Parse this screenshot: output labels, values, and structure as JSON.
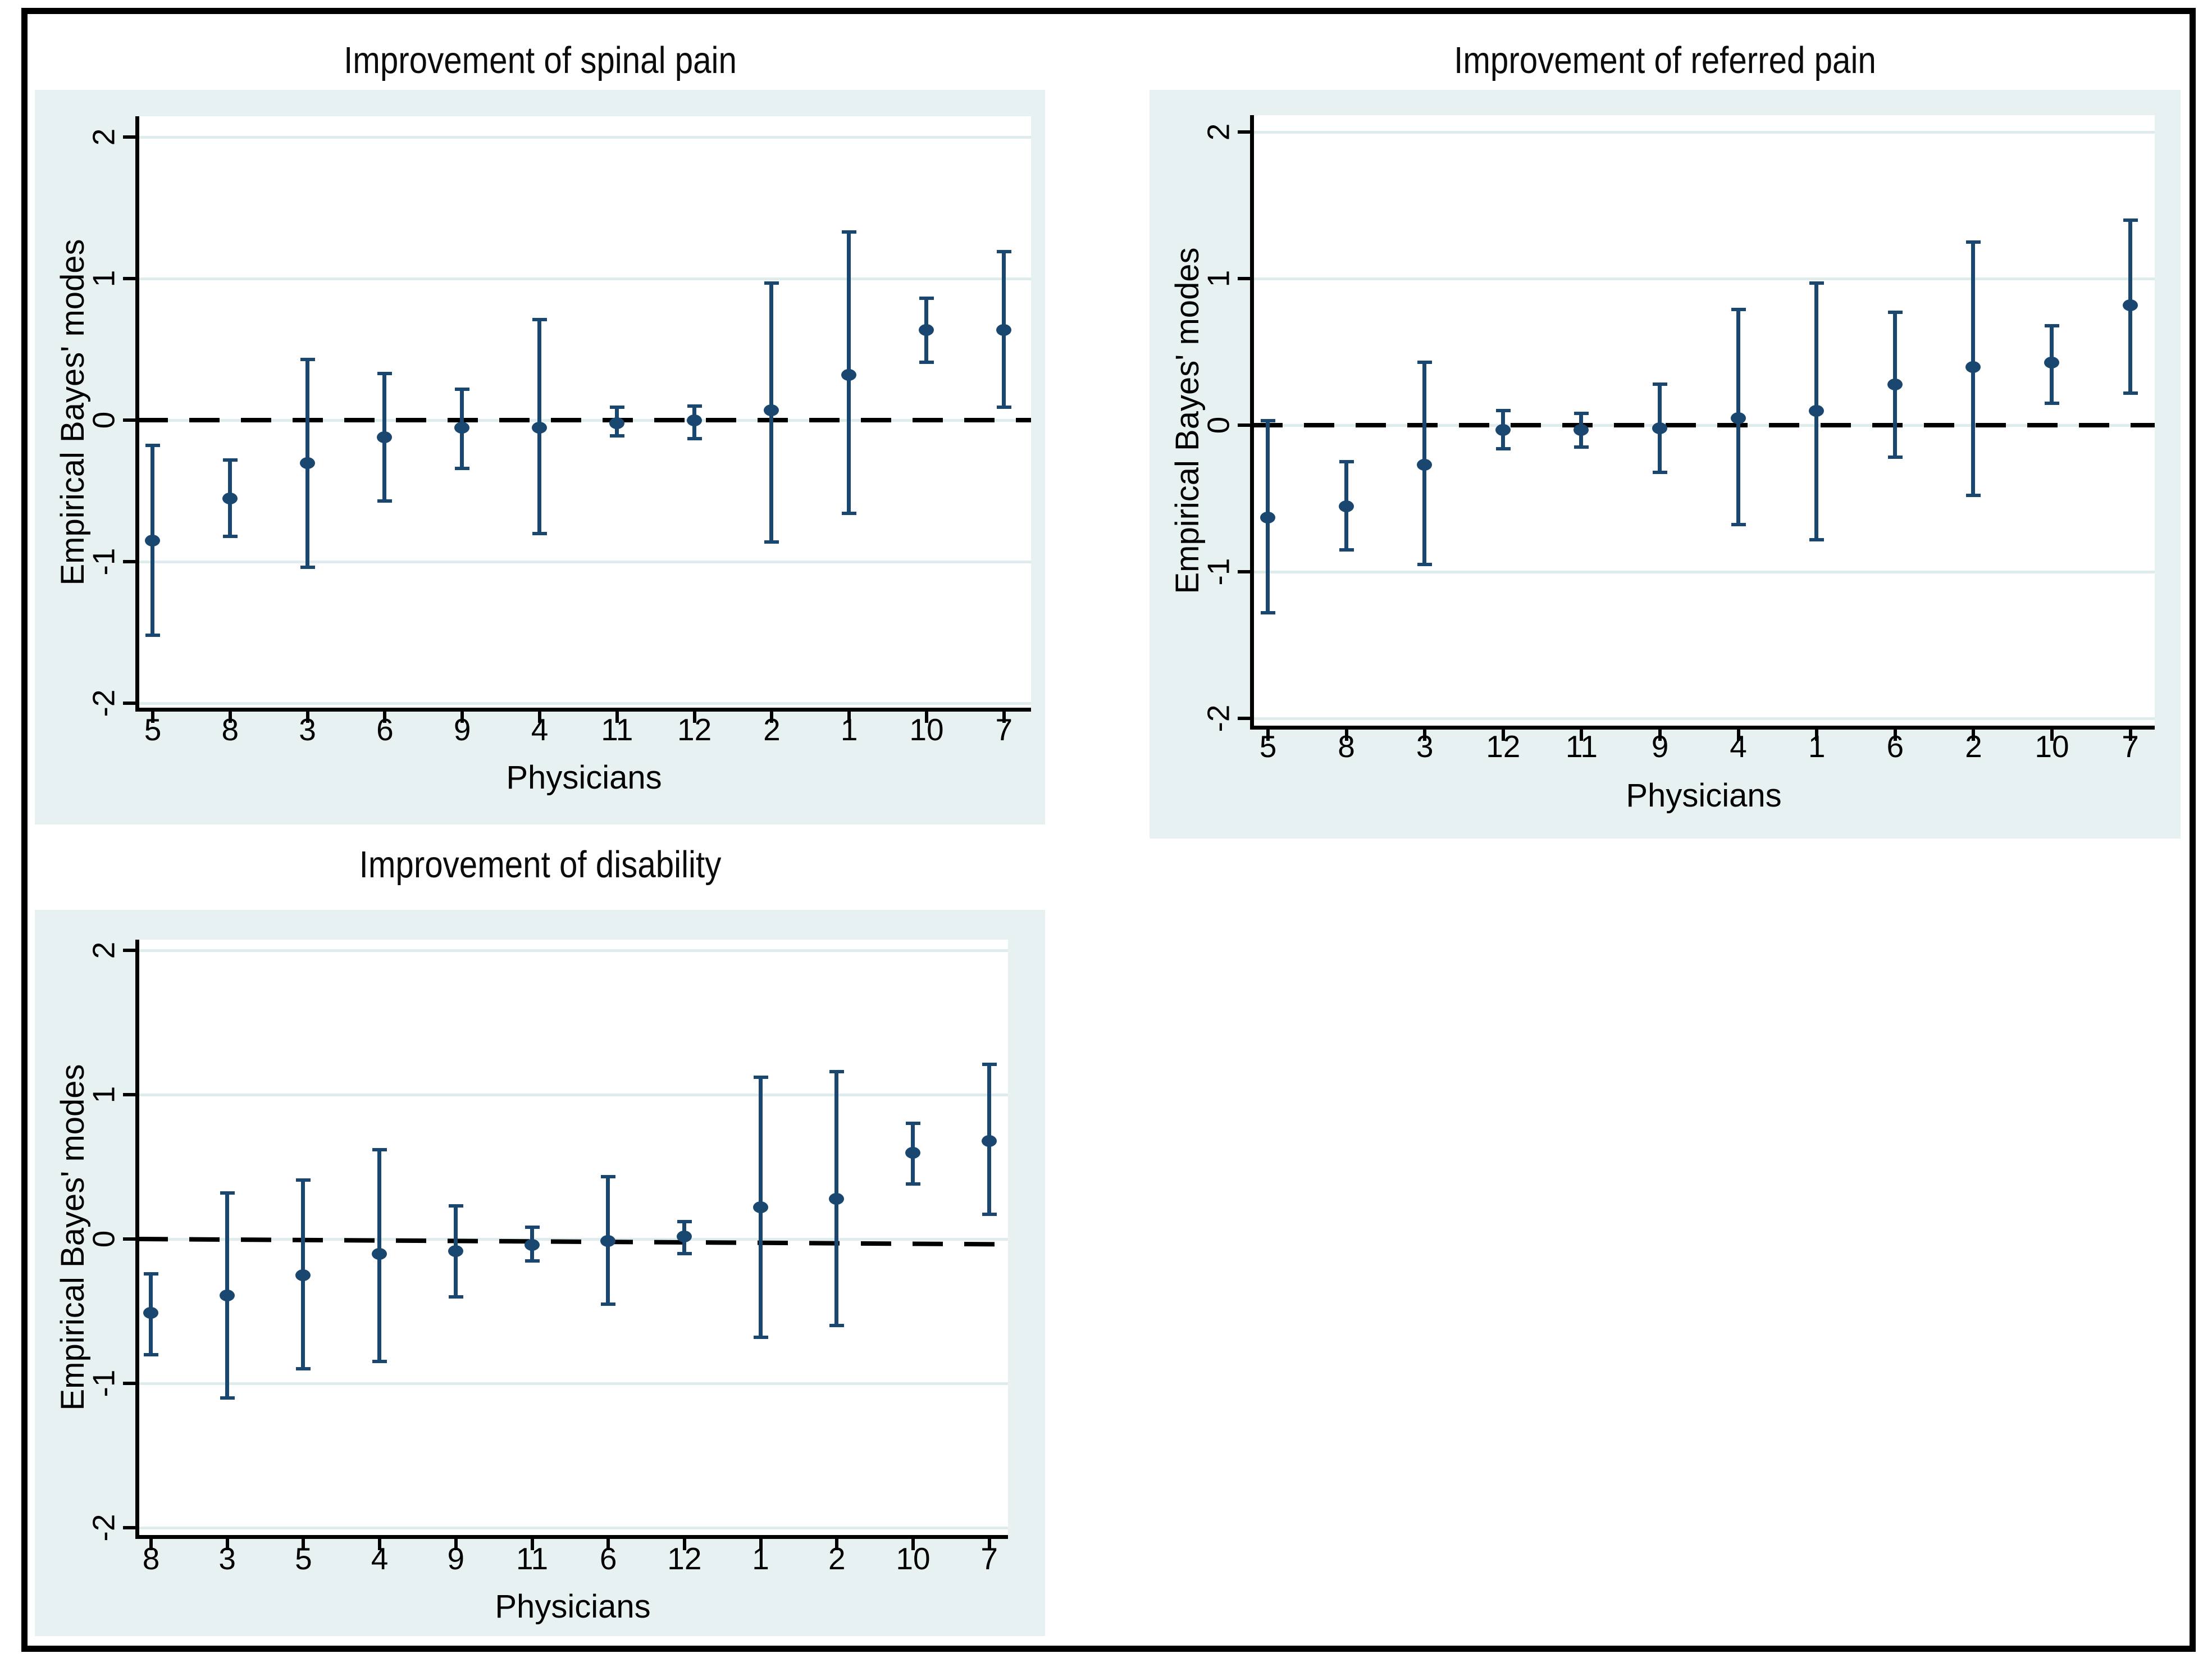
{
  "figure": {
    "panel_bg_color": "#e8f1f2",
    "plot_bg_color": "#ffffff",
    "grid_color": "#dfecee",
    "marker_color": "#1a476f",
    "axis_color": "#000000",
    "zero_line_style": "dashed",
    "zero_line_color": "#000000"
  },
  "chart_data": [
    {
      "type": "scatter",
      "title": "Improvement of spinal pain",
      "xlabel": "Physicians",
      "ylabel": "Empirical Bayes' modes",
      "ylim": [
        -2,
        2
      ],
      "ytick_values": [
        2,
        1,
        0,
        -1,
        -2
      ],
      "ytick_labels": [
        "2",
        "1",
        "0",
        "-1",
        "-2"
      ],
      "grid": true,
      "zero_reference_line": true,
      "categories": [
        "5",
        "8",
        "3",
        "6",
        "9",
        "4",
        "11",
        "12",
        "2",
        "1",
        "10",
        "7"
      ],
      "estimates": [
        -0.85,
        -0.55,
        -0.3,
        -0.12,
        -0.05,
        -0.05,
        -0.02,
        0.0,
        0.07,
        0.32,
        0.64,
        0.64
      ],
      "ci_low": [
        -1.52,
        -0.82,
        -1.04,
        -0.57,
        -0.34,
        -0.8,
        -0.11,
        -0.13,
        -0.86,
        -0.66,
        0.41,
        0.09
      ],
      "ci_high": [
        -0.18,
        -0.28,
        0.43,
        0.33,
        0.22,
        0.71,
        0.09,
        0.1,
        0.97,
        1.33,
        0.86,
        1.19
      ]
    },
    {
      "type": "scatter",
      "title": "Improvement of referred pain",
      "xlabel": "Physicians",
      "ylabel": "Empirical Bayes' modes",
      "ylim": [
        -2,
        2
      ],
      "ytick_values": [
        2,
        1,
        0,
        -1,
        -2
      ],
      "ytick_labels": [
        "2",
        "1",
        "0",
        "-1",
        "-2"
      ],
      "grid": true,
      "zero_reference_line": true,
      "categories": [
        "5",
        "8",
        "3",
        "12",
        "11",
        "9",
        "4",
        "1",
        "6",
        "2",
        "10",
        "7"
      ],
      "estimates": [
        -0.63,
        -0.55,
        -0.27,
        -0.03,
        -0.03,
        -0.02,
        0.05,
        0.1,
        0.28,
        0.4,
        0.43,
        0.82
      ],
      "ci_low": [
        -1.28,
        -0.85,
        -0.95,
        -0.16,
        -0.15,
        -0.32,
        -0.68,
        -0.78,
        -0.22,
        -0.48,
        0.15,
        0.22
      ],
      "ci_high": [
        0.03,
        -0.25,
        0.43,
        0.1,
        0.08,
        0.28,
        0.79,
        0.97,
        0.77,
        1.25,
        0.68,
        1.4
      ]
    },
    {
      "type": "scatter",
      "title": "Improvement of disability",
      "xlabel": "Physicians",
      "ylabel": "Empirical Bayes' modes",
      "ylim": [
        -2,
        2
      ],
      "ytick_values": [
        2,
        1,
        0,
        -1,
        -2
      ],
      "ytick_labels": [
        "2",
        "1",
        "0",
        "-1",
        "-2"
      ],
      "grid": true,
      "zero_reference_line": true,
      "categories": [
        "8",
        "3",
        "5",
        "4",
        "9",
        "11",
        "6",
        "12",
        "1",
        "2",
        "10",
        "7"
      ],
      "estimates": [
        -0.51,
        -0.39,
        -0.25,
        -0.1,
        -0.08,
        -0.04,
        -0.01,
        0.02,
        0.22,
        0.28,
        0.6,
        0.68
      ],
      "ci_low": [
        -0.8,
        -1.1,
        -0.9,
        -0.85,
        -0.4,
        -0.15,
        -0.45,
        -0.1,
        -0.68,
        -0.6,
        0.38,
        0.17
      ],
      "ci_high": [
        -0.24,
        0.32,
        0.41,
        0.62,
        0.23,
        0.08,
        0.43,
        0.12,
        1.12,
        1.16,
        0.8,
        1.21
      ]
    }
  ]
}
